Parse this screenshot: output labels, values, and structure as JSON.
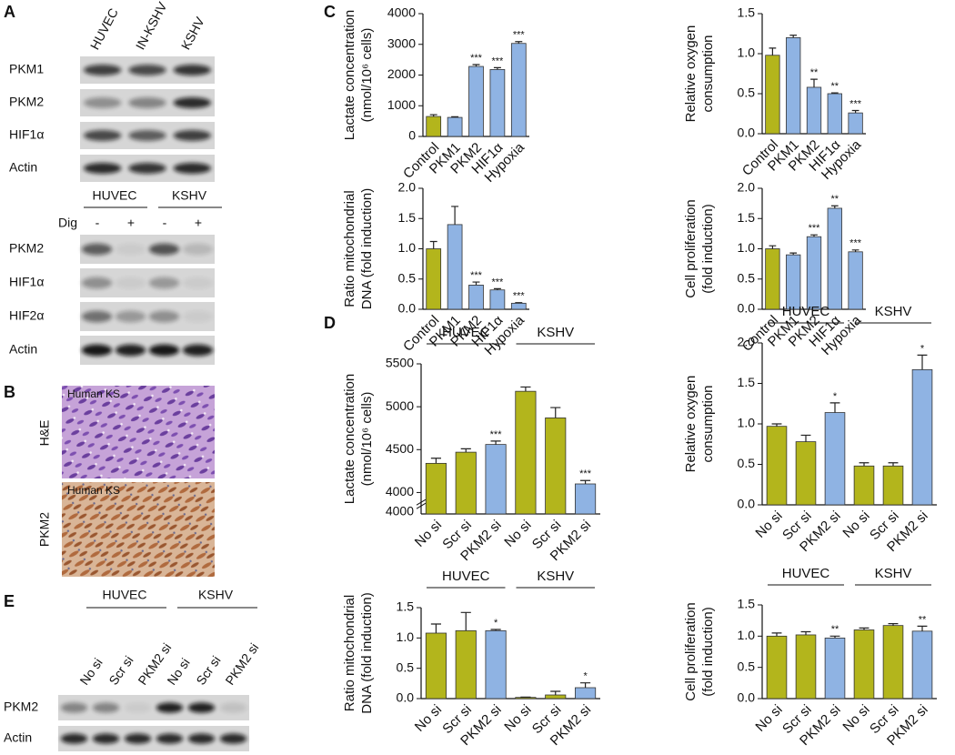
{
  "panel_letters": {
    "A": "A",
    "B": "B",
    "C": "C",
    "D": "D",
    "E": "E"
  },
  "panel_a": {
    "lanes": [
      "HUVEC",
      "IN-KSHV",
      "KSHV"
    ],
    "rows": [
      "PKM1",
      "PKM2",
      "HIF1α",
      "Actin"
    ],
    "lower": {
      "groups": [
        "HUVEC",
        "KSHV"
      ],
      "treatment": "Dig",
      "signs": [
        "-",
        "+",
        "-",
        "+"
      ],
      "rows": [
        "PKM2",
        "HIF1α",
        "HIF2α",
        "Actin"
      ]
    }
  },
  "panel_b": {
    "images": [
      {
        "caption": "Human KS",
        "stain": "H&E"
      },
      {
        "caption": "Human KS",
        "stain": "PKM2"
      }
    ]
  },
  "panel_e": {
    "groups": [
      "HUVEC",
      "KSHV"
    ],
    "lanes": [
      "No si",
      "Scr si",
      "PKM2 si",
      "No si",
      "Scr si",
      "PKM2 si"
    ],
    "rows": [
      "PKM2",
      "Actin"
    ]
  },
  "chart_data": [
    {
      "type": "bar",
      "y_label": [
        "Lactate concentration",
        "(nmol/10⁶ cells)"
      ],
      "categories": [
        "Control",
        "PKM1",
        "PKM2",
        "HIF1α",
        "Hypoxia"
      ],
      "values": [
        650,
        620,
        2280,
        2180,
        3030
      ],
      "errors": [
        60,
        20,
        60,
        60,
        60
      ],
      "annotations": [
        null,
        null,
        "***",
        "***",
        "***"
      ],
      "colors": [
        "#b3b51c",
        "#8fb3e3",
        "#8fb3e3",
        "#8fb3e3",
        "#8fb3e3"
      ],
      "ylim": [
        0,
        4000
      ],
      "yticks": [
        0,
        1000,
        2000,
        3000,
        4000
      ]
    },
    {
      "type": "bar",
      "y_label": [
        "Relative oxygen",
        "consumption"
      ],
      "categories": [
        "Control",
        "PKM1",
        "PKM2",
        "HIF1α",
        "Hypoxia"
      ],
      "values": [
        0.98,
        1.2,
        0.58,
        0.5,
        0.26
      ],
      "errors": [
        0.09,
        0.03,
        0.1,
        0.01,
        0.03
      ],
      "annotations": [
        null,
        null,
        "**",
        "**",
        "***"
      ],
      "colors": [
        "#b3b51c",
        "#8fb3e3",
        "#8fb3e3",
        "#8fb3e3",
        "#8fb3e3"
      ],
      "ylim": [
        0,
        1.5
      ],
      "yticks": [
        {
          "value": 0,
          "label": "0.0"
        },
        0.5,
        {
          "value": 1,
          "label": "1.0"
        },
        1.5
      ]
    },
    {
      "type": "bar",
      "y_label": [
        "Ratio mitochondrial",
        "DNA (fold induction)"
      ],
      "categories": [
        "Control",
        "PKM1",
        "PKM2",
        "HIF1α",
        "Hypoxia"
      ],
      "values": [
        1.0,
        1.4,
        0.4,
        0.32,
        0.1
      ],
      "errors": [
        0.12,
        0.3,
        0.05,
        0.02,
        0.01
      ],
      "annotations": [
        null,
        null,
        "***",
        "***",
        "***"
      ],
      "colors": [
        "#b3b51c",
        "#8fb3e3",
        "#8fb3e3",
        "#8fb3e3",
        "#8fb3e3"
      ],
      "ylim": [
        0,
        2
      ],
      "yticks": [
        {
          "value": 0,
          "label": "0.0"
        },
        0.5,
        {
          "value": 1,
          "label": "1.0"
        },
        1.5,
        {
          "value": 2,
          "label": "2.0"
        }
      ]
    },
    {
      "type": "bar",
      "y_label": [
        "Cell proliferation",
        "(fold induction)"
      ],
      "categories": [
        "Control",
        "PKM1",
        "PKM2",
        "HIF1α",
        "Hypoxia"
      ],
      "values": [
        1.0,
        0.9,
        1.2,
        1.67,
        0.95
      ],
      "errors": [
        0.05,
        0.03,
        0.03,
        0.04,
        0.03
      ],
      "annotations": [
        null,
        null,
        "***",
        "**",
        "***"
      ],
      "colors": [
        "#b3b51c",
        "#8fb3e3",
        "#8fb3e3",
        "#8fb3e3",
        "#8fb3e3"
      ],
      "ylim": [
        0,
        2
      ],
      "yticks": [
        {
          "value": 0,
          "label": "0.0"
        },
        0.5,
        {
          "value": 1,
          "label": "1.0"
        },
        1.5,
        {
          "value": 2,
          "label": "2.0"
        }
      ]
    },
    {
      "type": "bar",
      "y_label": [
        "Lactate concentration",
        "(nmol/10⁶ cells)"
      ],
      "groups": [
        "HUVEC",
        "KSHV"
      ],
      "categories": [
        "No si",
        "Scr si",
        "PKM2 si",
        "No si",
        "Scr si",
        "PKM2 si"
      ],
      "values": [
        4340,
        4470,
        4560,
        5180,
        4870,
        4100
      ],
      "errors": [
        60,
        40,
        40,
        50,
        120,
        40
      ],
      "annotations": [
        null,
        null,
        "***",
        null,
        null,
        "***"
      ],
      "colors": [
        "#b3b51c",
        "#b3b51c",
        "#8fb3e3",
        "#b3b51c",
        "#b3b51c",
        "#8fb3e3"
      ],
      "ylim": [
        3750,
        5500
      ],
      "yticks": [
        4000,
        4500,
        5000,
        5500
      ],
      "axis_break_label": "4000"
    },
    {
      "type": "bar",
      "y_label": [
        "Relative oxygen",
        "consumption"
      ],
      "groups": [
        "HUVEC",
        "KSHV"
      ],
      "categories": [
        "No si",
        "Scr si",
        "PKM2 si",
        "No si",
        "Scr si",
        "PKM2 si"
      ],
      "values": [
        0.97,
        0.78,
        1.14,
        0.48,
        0.48,
        1.67
      ],
      "errors": [
        0.03,
        0.08,
        0.12,
        0.04,
        0.04,
        0.18
      ],
      "annotations": [
        null,
        null,
        "*",
        null,
        null,
        "*"
      ],
      "colors": [
        "#b3b51c",
        "#b3b51c",
        "#8fb3e3",
        "#b3b51c",
        "#b3b51c",
        "#8fb3e3"
      ],
      "ylim": [
        0,
        2
      ],
      "yticks": [
        {
          "value": 0,
          "label": "0.0"
        },
        0.5,
        {
          "value": 1,
          "label": "1.0"
        },
        1.5,
        {
          "value": 2,
          "label": "2.0"
        }
      ]
    },
    {
      "type": "bar",
      "y_label": [
        "Ratio mitochondrial",
        "DNA (fold induction)"
      ],
      "groups": [
        "HUVEC",
        "KSHV"
      ],
      "categories": [
        "No si",
        "Scr si",
        "PKM2 si",
        "No si",
        "Scr si",
        "PKM2 si"
      ],
      "values": [
        1.08,
        1.12,
        1.12,
        0.02,
        0.06,
        0.18
      ],
      "errors": [
        0.15,
        0.3,
        0.02,
        0.005,
        0.06,
        0.08
      ],
      "annotations": [
        null,
        null,
        "*",
        null,
        null,
        "*"
      ],
      "colors": [
        "#b3b51c",
        "#b3b51c",
        "#8fb3e3",
        "#b3b51c",
        "#b3b51c",
        "#8fb3e3"
      ],
      "ylim": [
        0,
        1.5
      ],
      "yticks": [
        {
          "value": 0,
          "label": "0.0"
        },
        0.5,
        {
          "value": 1,
          "label": "1.0"
        },
        1.5
      ]
    },
    {
      "type": "bar",
      "y_label": [
        "Cell proliferation",
        "(fold induction)"
      ],
      "groups": [
        "HUVEC",
        "KSHV"
      ],
      "categories": [
        "No si",
        "Scr si",
        "PKM2 si",
        "No si",
        "Scr si",
        "PKM2 si"
      ],
      "values": [
        1.0,
        1.02,
        0.97,
        1.1,
        1.17,
        1.08
      ],
      "errors": [
        0.05,
        0.05,
        0.03,
        0.03,
        0.03,
        0.08
      ],
      "annotations": [
        null,
        null,
        "**",
        null,
        null,
        "**"
      ],
      "colors": [
        "#b3b51c",
        "#b3b51c",
        "#8fb3e3",
        "#b3b51c",
        "#b3b51c",
        "#8fb3e3"
      ],
      "ylim": [
        0,
        1.5
      ],
      "yticks": [
        {
          "value": 0,
          "label": "0.0"
        },
        0.5,
        {
          "value": 1,
          "label": "1.0"
        },
        1.5
      ]
    }
  ]
}
